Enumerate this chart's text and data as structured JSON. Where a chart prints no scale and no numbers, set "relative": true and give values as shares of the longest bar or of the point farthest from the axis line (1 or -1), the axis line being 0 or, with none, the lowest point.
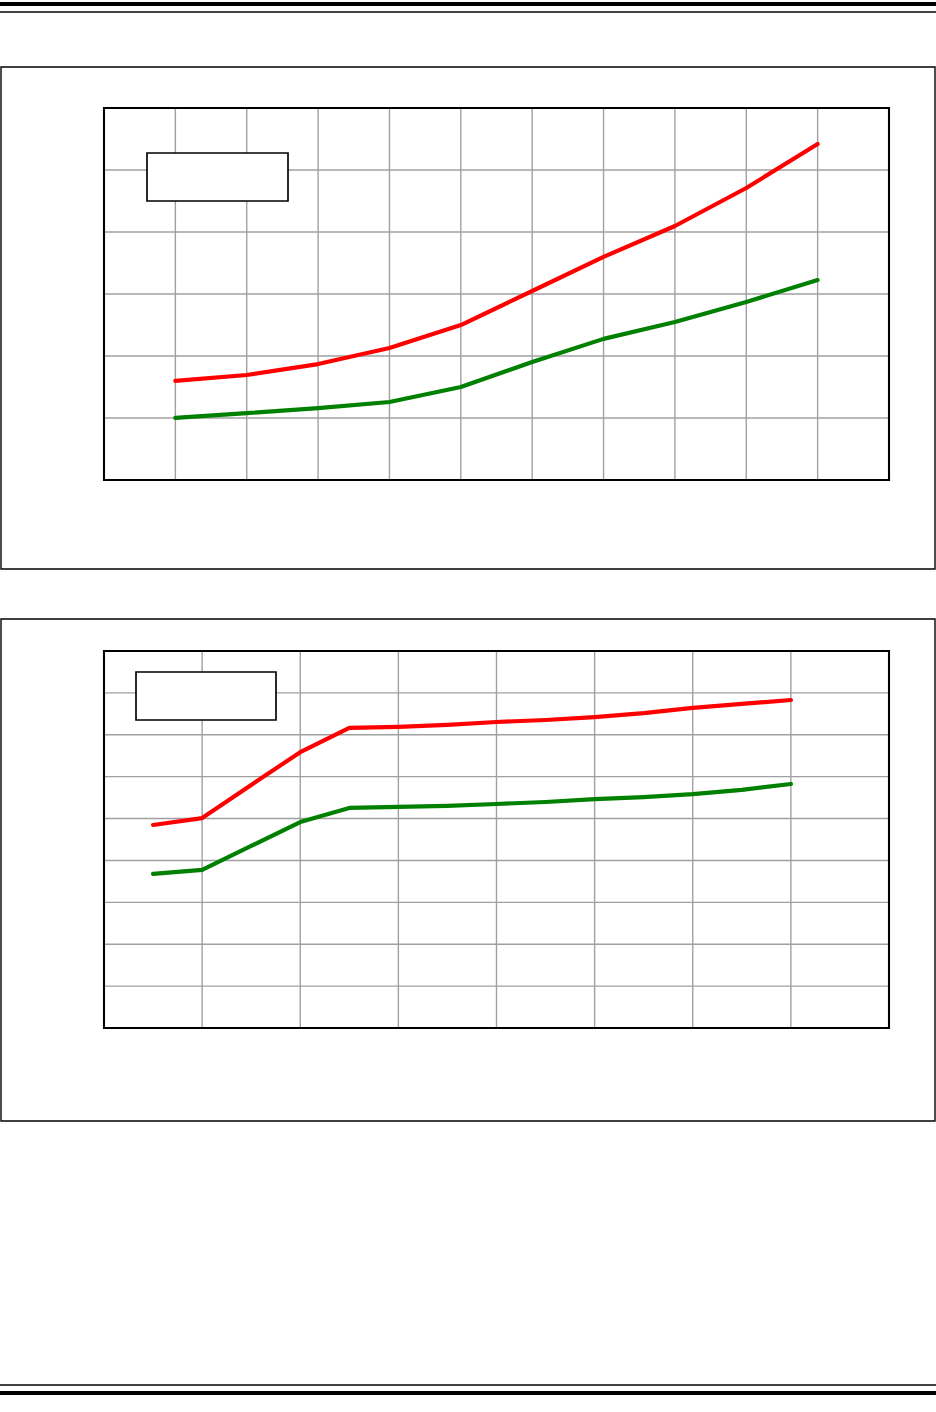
{
  "chart_data": [
    {
      "type": "line",
      "relative": true,
      "grid": true,
      "legend": false,
      "categories": [
        null,
        null,
        null,
        null,
        null,
        null,
        null,
        null,
        null,
        null
      ],
      "series": [
        {
          "color": "#ff0000",
          "values": [
            0.295,
            0.3125,
            0.345,
            0.393,
            0.461,
            0.5625,
            0.664,
            0.756,
            0.869,
            1
          ]
        },
        {
          "color": "#008000",
          "values": [
            0.185,
            0.199,
            0.214,
            0.232,
            0.277,
            0.351,
            0.42,
            0.47,
            0.53,
            0.595
          ]
        }
      ]
    },
    {
      "type": "line",
      "relative": true,
      "grid": true,
      "legend": false,
      "categories": [
        null,
        null,
        null,
        null,
        null,
        null,
        null,
        null,
        null,
        null,
        null,
        null,
        null,
        null
      ],
      "series": [
        {
          "color": "#ff0000",
          "values": [
            0.619,
            0.64,
            0.741,
            0.841,
            0.915,
            0.918,
            0.924,
            0.933,
            0.939,
            0.948,
            0.96,
            0.976,
            0.988,
            1
          ]
        },
        {
          "color": "#008000",
          "values": [
            0.47,
            0.482,
            0.555,
            0.628,
            0.671,
            0.674,
            0.677,
            0.683,
            0.689,
            0.698,
            0.704,
            0.713,
            0.726,
            0.744
          ]
        }
      ]
    }
  ]
}
